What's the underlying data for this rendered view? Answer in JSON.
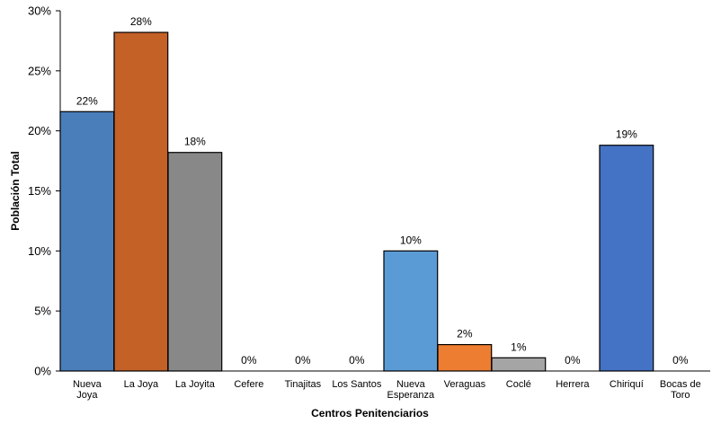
{
  "chart_data": {
    "type": "bar",
    "xlabel": "Centros Penitenciarios",
    "ylabel": "Población Total",
    "ylim": [
      0,
      30
    ],
    "y_ticks": [
      "0%",
      "5%",
      "10%",
      "15%",
      "20%",
      "25%",
      "30%"
    ],
    "y_tick_values": [
      0,
      5,
      10,
      15,
      20,
      25,
      30
    ],
    "categories": [
      [
        "Nueva",
        "Joya"
      ],
      [
        "La Joya"
      ],
      [
        "La Joyita"
      ],
      [
        "Cefere"
      ],
      [
        "Tinajitas"
      ],
      [
        "Los Santos"
      ],
      [
        "Nueva",
        "Esperanza"
      ],
      [
        "Veraguas"
      ],
      [
        "Coclé"
      ],
      [
        "Herrera"
      ],
      [
        "Chiriquí"
      ],
      [
        "Bocas de",
        "Toro"
      ]
    ],
    "values": [
      21.6,
      28.2,
      18.2,
      0,
      0,
      0,
      10,
      2.2,
      1.1,
      0,
      18.8,
      0
    ],
    "data_labels": [
      "22%",
      "28%",
      "18%",
      "0%",
      "0%",
      "0%",
      "10%",
      "2%",
      "1%",
      "0%",
      "19%",
      "0%"
    ],
    "colors": [
      "#4a7ebb",
      "#c46127",
      "#888888",
      "#4a7ebb",
      "#c46127",
      "#888888",
      "#5b9bd5",
      "#ed7d31",
      "#a5a5a5",
      "#ffc000",
      "#4472c4",
      "#70ad47"
    ],
    "grid": false,
    "legend": "none"
  }
}
